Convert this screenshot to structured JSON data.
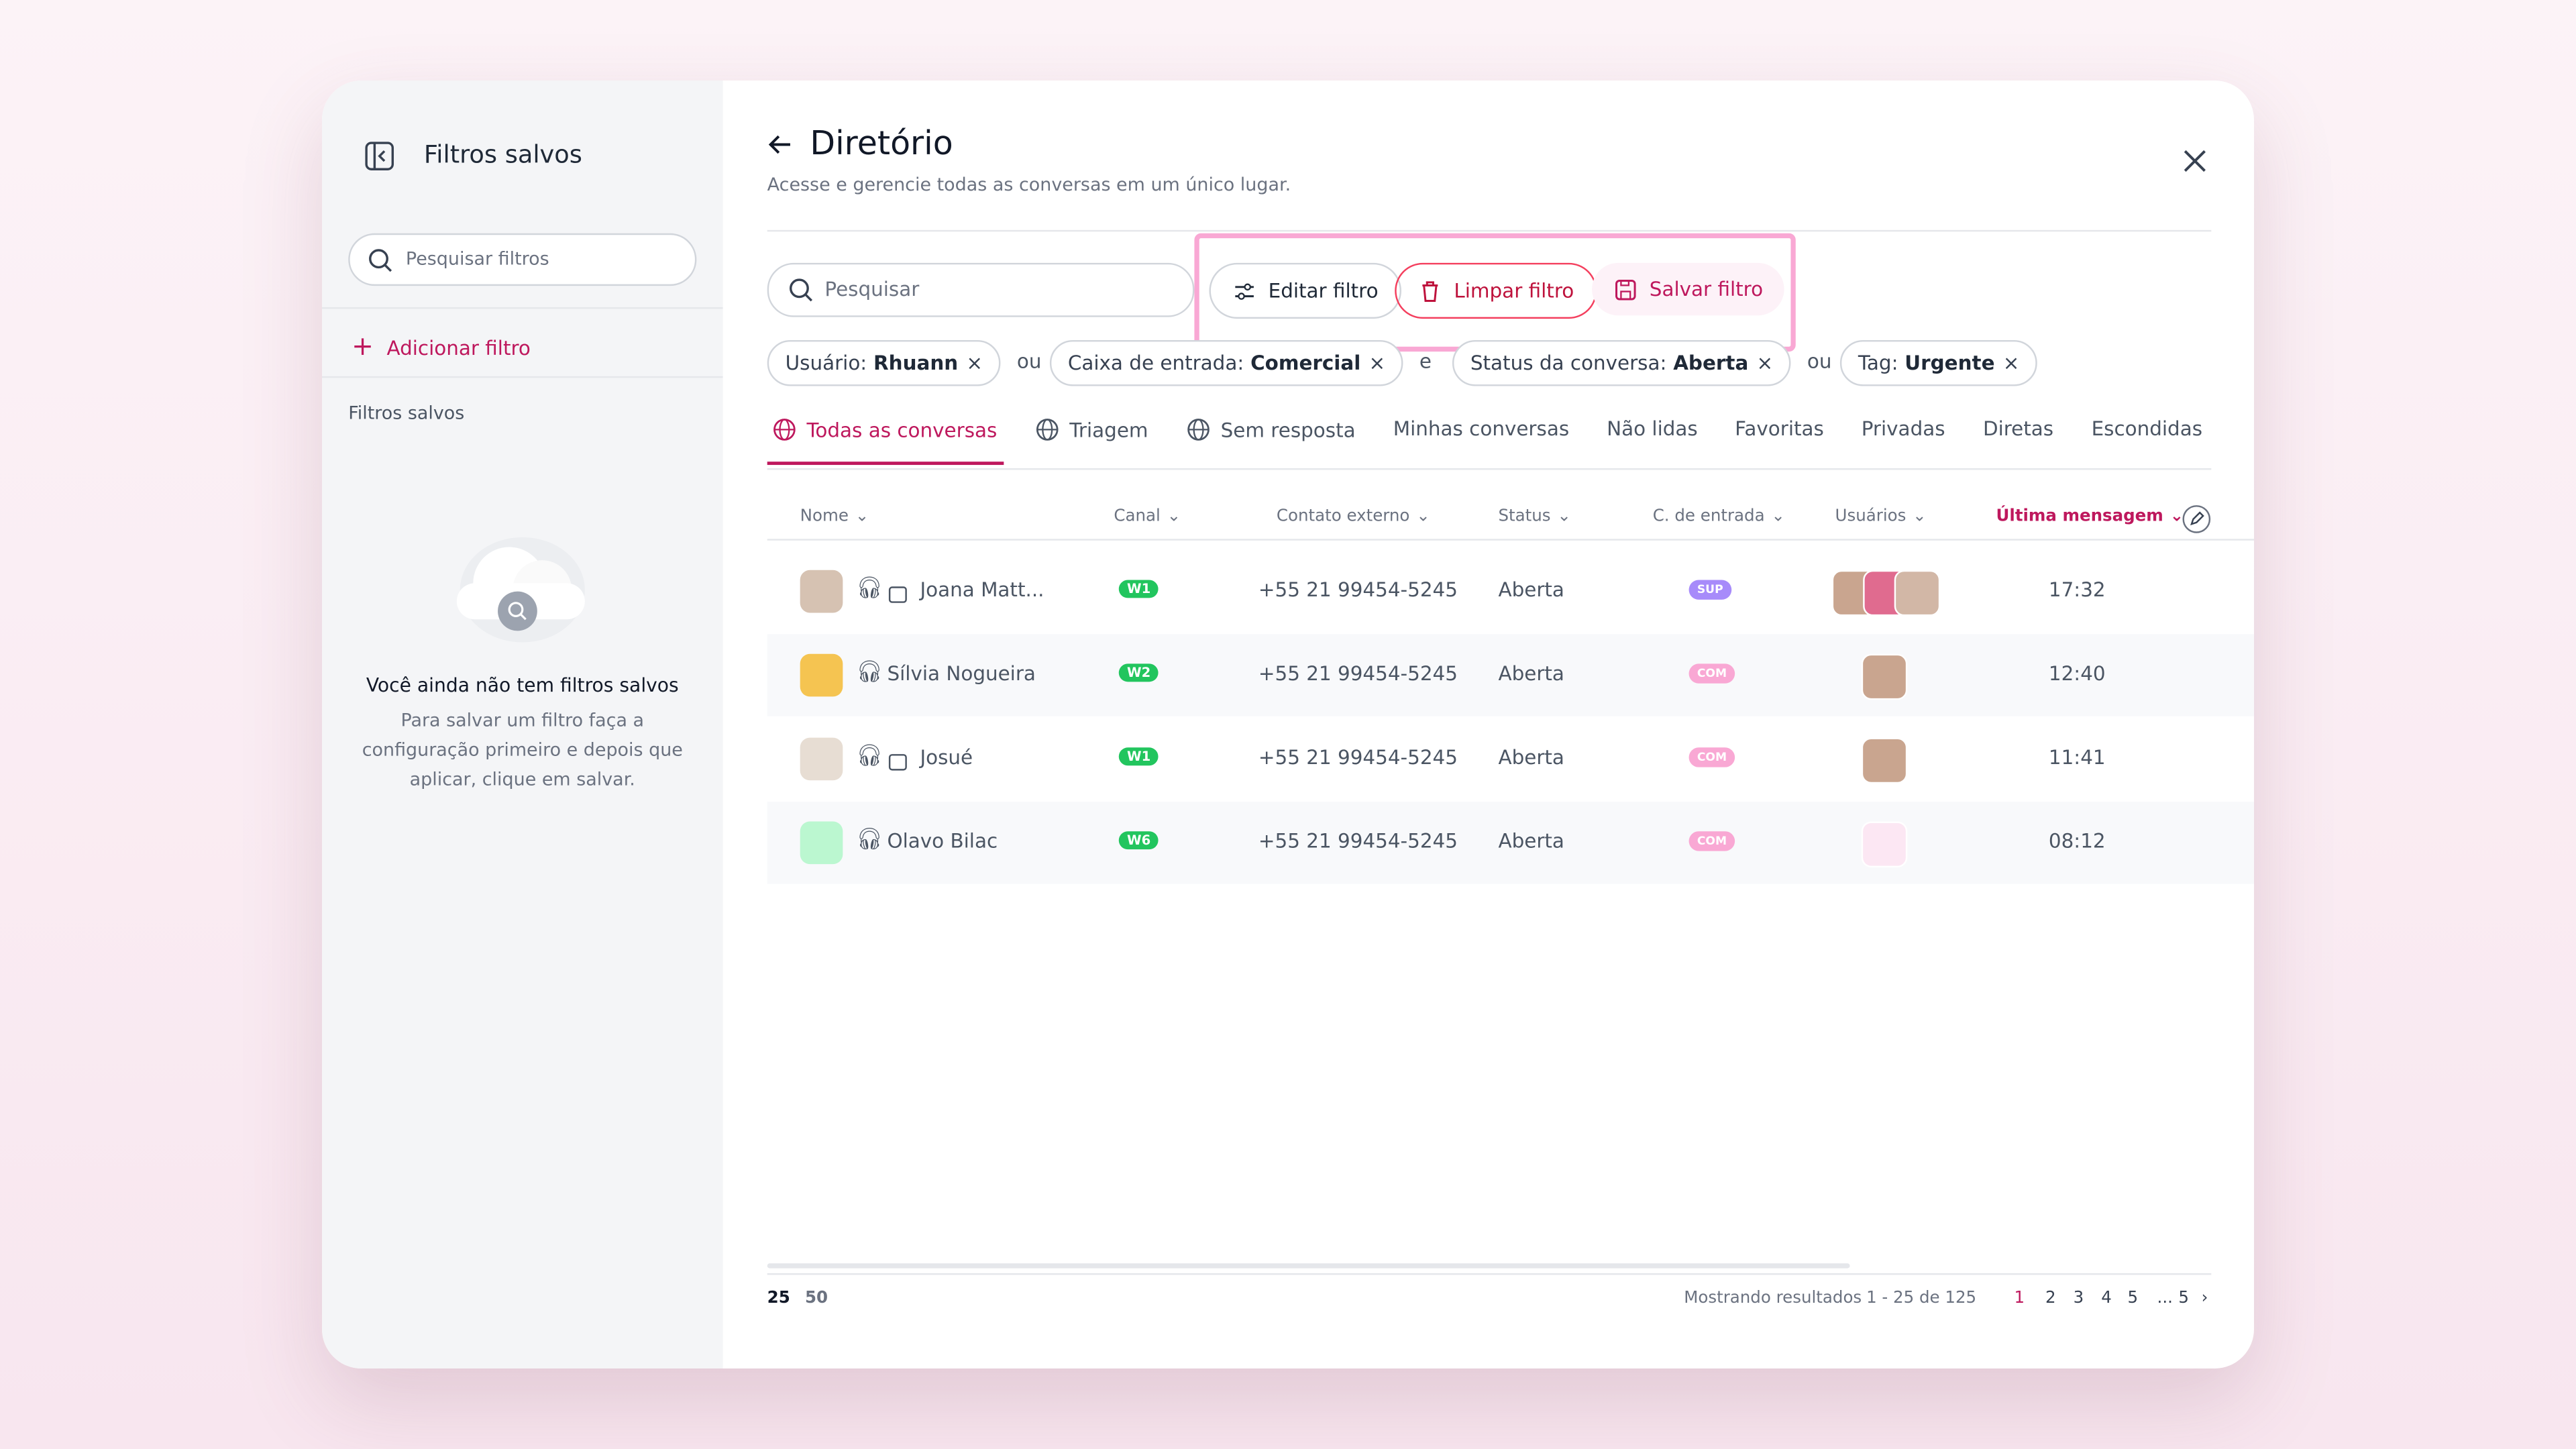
{
  "sidebar": {
    "title": "Filtros salvos",
    "search_placeholder": "Pesquisar filtros",
    "add_filter": "Adicionar filtro",
    "section_label": "Filtros salvos",
    "empty_title": "Você ainda não tem filtros salvos",
    "empty_text": "Para salvar um filtro faça a configuração primeiro e depois que aplicar, clique em salvar."
  },
  "header": {
    "title": "Diretório",
    "subtitle": "Acesse e gerencie todas as conversas em um único lugar."
  },
  "search_placeholder": "Pesquisar",
  "actions": [
    "Editar filtro",
    "Limpar filtro",
    "Salvar filtro"
  ],
  "filters": [
    {
      "label": "Usuário:",
      "value": "Rhuann"
    },
    {
      "connector": "ou"
    },
    {
      "label": "Caixa de entrada:",
      "value": "Comercial"
    },
    {
      "connector": "e"
    },
    {
      "label": "Status da conversa:",
      "value": "Aberta"
    },
    {
      "connector": "ou"
    },
    {
      "label": "Tag:",
      "value": "Urgente"
    }
  ],
  "tabs": [
    "Todas as conversas",
    "Triagem",
    "Sem resposta",
    "Minhas conversas",
    "Não lidas",
    "Favoritas",
    "Privadas",
    "Diretas",
    "Escondidas"
  ],
  "active_tab": 0,
  "columns": [
    "Nome",
    "Canal",
    "Contato externo",
    "Status",
    "C. de entrada",
    "Usuários",
    "Última mensagem"
  ],
  "rows": [
    {
      "name": "Joana Matt...",
      "channel": "W1",
      "phone": "+55 21 99454-5245",
      "status": "Aberta",
      "inbox": "SUP",
      "time": "17:32"
    },
    {
      "name": "Sílvia Nogueira",
      "channel": "W2",
      "phone": "+55 21 99454-5245",
      "status": "Aberta",
      "inbox": "COM",
      "time": "12:40"
    },
    {
      "name": "Josué",
      "channel": "W1",
      "phone": "+55 21 99454-5245",
      "status": "Aberta",
      "inbox": "COM",
      "time": "11:41"
    },
    {
      "name": "Olavo Bilac",
      "channel": "W6",
      "phone": "+55 21 99454-5245",
      "status": "Aberta",
      "inbox": "COM",
      "time": "08:12"
    }
  ],
  "footer": {
    "page_sizes": [
      25,
      50
    ],
    "results_label": "Mostrando resultados",
    "range": "1 - 25 de 125",
    "pages": [
      "1",
      "2",
      "3",
      "4",
      "5",
      "...",
      "5"
    ]
  }
}
